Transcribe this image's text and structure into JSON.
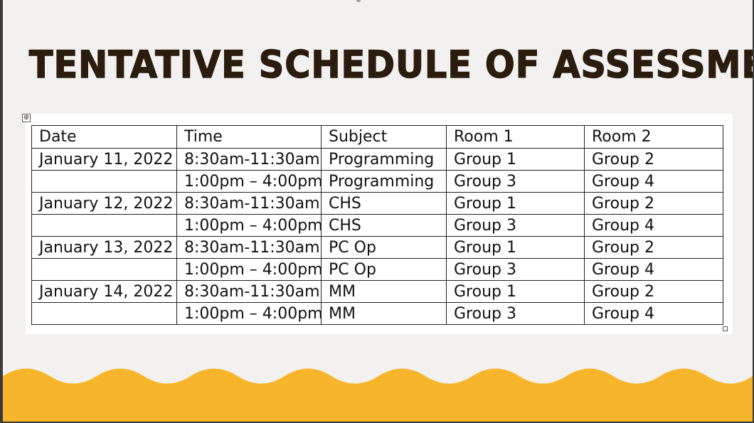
{
  "slide": {
    "title": "TENTATIVE SCHEDULE OF ASSESSMENT:",
    "colors": {
      "background": "#f2f1f0",
      "title": "#2b1d0e",
      "wave": "#f7b52c",
      "table_bg": "#ffffff",
      "table_border": "#222222"
    }
  },
  "table": {
    "move_handle_icon": "table-move-icon",
    "headers": {
      "date": "Date",
      "time": "Time",
      "subject": "Subject",
      "room1": "Room 1",
      "room2": "Room 2"
    },
    "rows": [
      {
        "date": "January 11, 2022",
        "time": "8:30am-11:30am",
        "subject": "Programming",
        "room1": "Group 1",
        "room2": "Group 2"
      },
      {
        "date": "",
        "time": "1:00pm – 4:00pm",
        "subject": "Programming",
        "room1": "Group 3",
        "room2": "Group 4"
      },
      {
        "date": "January 12, 2022",
        "time": "8:30am-11:30am",
        "subject": "CHS",
        "room1": "Group 1",
        "room2": "Group 2"
      },
      {
        "date": "",
        "time": "1:00pm – 4:00pm",
        "subject": "CHS",
        "room1": "Group 3",
        "room2": "Group 4"
      },
      {
        "date": "January 13, 2022",
        "time": "8:30am-11:30am",
        "subject": "PC Op",
        "room1": "Group 1",
        "room2": "Group 2"
      },
      {
        "date": "",
        "time": "1:00pm – 4:00pm",
        "subject": "PC Op",
        "room1": "Group 3",
        "room2": "Group 4"
      },
      {
        "date": "January 14, 2022",
        "time": "8:30am-11:30am",
        "subject": "MM",
        "room1": "Group 1",
        "room2": "Group 2"
      },
      {
        "date": "",
        "time": "1:00pm – 4:00pm",
        "subject": "MM",
        "room1": "Group 3",
        "room2": "Group 4"
      }
    ]
  }
}
